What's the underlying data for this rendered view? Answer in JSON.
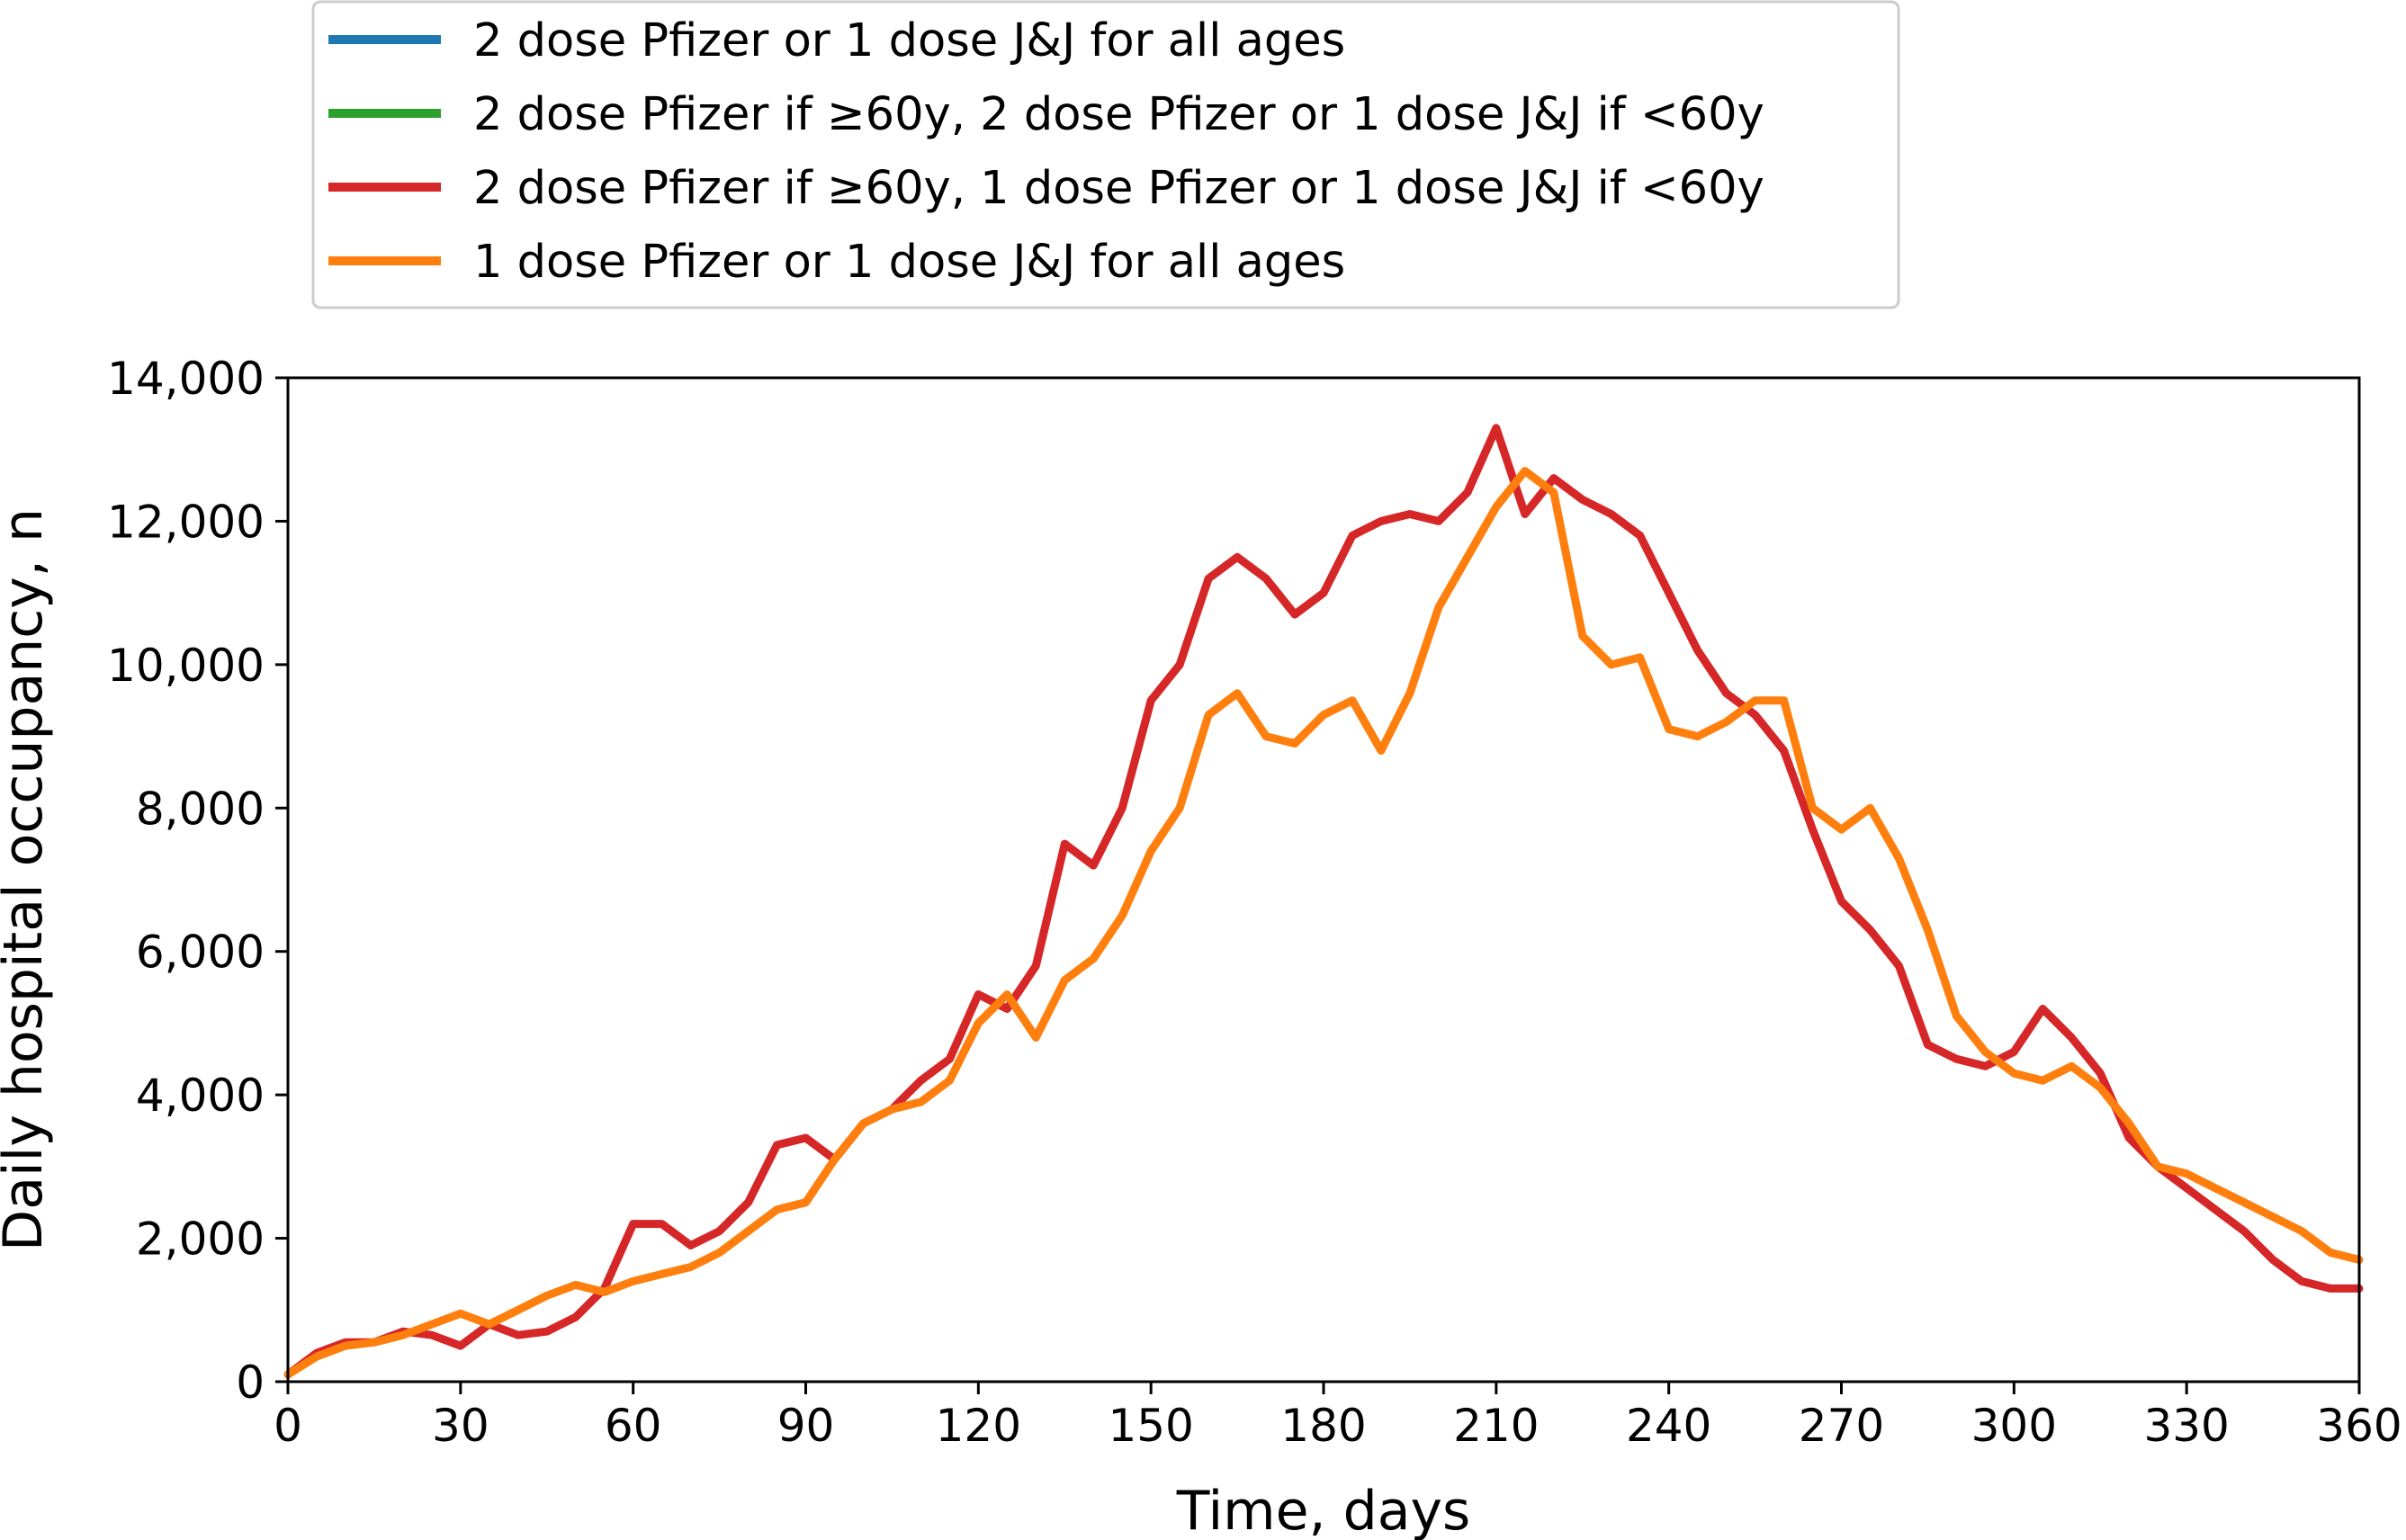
{
  "chart_data": {
    "type": "line",
    "xlabel": "Time, days",
    "ylabel": "Daily hospital occupancy, n",
    "xlim": [
      0,
      360
    ],
    "ylim": [
      0,
      14000
    ],
    "x_ticks": [
      0,
      30,
      60,
      90,
      120,
      150,
      180,
      210,
      240,
      270,
      300,
      330,
      360
    ],
    "x_tick_labels": [
      "0",
      "30",
      "60",
      "90",
      "120",
      "150",
      "180",
      "210",
      "240",
      "270",
      "300",
      "330",
      "360"
    ],
    "y_ticks": [
      0,
      2000,
      4000,
      6000,
      8000,
      10000,
      12000,
      14000
    ],
    "y_tick_labels": [
      "0",
      "2,000",
      "4,000",
      "6,000",
      "8,000",
      "10,000",
      "12,000",
      "14,000"
    ],
    "grid": false,
    "legend_position": "top-left, above plot",
    "series": [
      {
        "name": "2 dose Pfizer or 1 dose J&J for all ages",
        "color": "#1f77b4",
        "x": [],
        "y": []
      },
      {
        "name": "2 dose Pfizer if ≥60y, 2 dose Pfizer or 1 dose J&J if <60y",
        "color": "#2ca02c",
        "x": [],
        "y": []
      },
      {
        "name": "2 dose Pfizer if ≥60y, 1 dose Pfizer or 1 dose J&J if <60y",
        "color": "#d62728",
        "x": [
          0,
          5,
          10,
          15,
          20,
          25,
          30,
          35,
          40,
          45,
          50,
          55,
          60,
          65,
          70,
          75,
          80,
          85,
          90,
          95,
          100,
          105,
          110,
          115,
          120,
          125,
          130,
          135,
          140,
          145,
          150,
          155,
          160,
          165,
          170,
          175,
          180,
          185,
          190,
          195,
          200,
          205,
          210,
          215,
          220,
          225,
          230,
          235,
          240,
          245,
          250,
          255,
          260,
          265,
          270,
          275,
          280,
          285,
          290,
          295,
          300,
          305,
          310,
          315,
          320,
          325,
          330,
          335,
          340,
          345,
          350,
          355,
          360
        ],
        "y": [
          100,
          400,
          550,
          550,
          700,
          650,
          500,
          800,
          650,
          700,
          900,
          1300,
          2200,
          2200,
          1900,
          2100,
          2500,
          3300,
          3400,
          3100,
          3600,
          3800,
          4200,
          4500,
          5400,
          5200,
          5800,
          7500,
          7200,
          8000,
          9500,
          10000,
          11200,
          11500,
          11200,
          10700,
          11000,
          11800,
          12000,
          12100,
          12000,
          12400,
          13300,
          12100,
          12600,
          12300,
          12100,
          11800,
          11000,
          10200,
          9600,
          9300,
          8800,
          7700,
          6700,
          6300,
          5800,
          4700,
          4500,
          4400,
          4600,
          5200,
          4800,
          4300,
          3400,
          3000,
          2700,
          2400,
          2100,
          1700,
          1400,
          1300,
          1300
        ]
      },
      {
        "name": "1 dose Pfizer or 1 dose J&J for all ages",
        "color": "#ff7f0e",
        "x": [
          0,
          5,
          10,
          15,
          20,
          25,
          30,
          35,
          40,
          45,
          50,
          55,
          60,
          65,
          70,
          75,
          80,
          85,
          90,
          95,
          100,
          105,
          110,
          115,
          120,
          125,
          130,
          135,
          140,
          145,
          150,
          155,
          160,
          165,
          170,
          175,
          180,
          185,
          190,
          195,
          200,
          205,
          210,
          215,
          220,
          225,
          230,
          235,
          240,
          245,
          250,
          255,
          260,
          265,
          270,
          275,
          280,
          285,
          290,
          295,
          300,
          305,
          310,
          315,
          320,
          325,
          330,
          335,
          340,
          345,
          350,
          355,
          360
        ],
        "y": [
          100,
          350,
          500,
          550,
          650,
          800,
          950,
          800,
          1000,
          1200,
          1350,
          1250,
          1400,
          1500,
          1600,
          1800,
          2100,
          2400,
          2500,
          3100,
          3600,
          3800,
          3900,
          4200,
          5000,
          5400,
          4800,
          5600,
          5900,
          6500,
          7400,
          8000,
          9300,
          9600,
          9000,
          8900,
          9300,
          9500,
          8800,
          9600,
          10800,
          11500,
          12200,
          12700,
          12400,
          10400,
          10000,
          10100,
          9100,
          9000,
          9200,
          9500,
          9500,
          8000,
          7700,
          8000,
          7300,
          6300,
          5100,
          4600,
          4300,
          4200,
          4400,
          4100,
          3600,
          3000,
          2900,
          2700,
          2500,
          2300,
          2100,
          1800,
          1700
        ]
      }
    ]
  }
}
